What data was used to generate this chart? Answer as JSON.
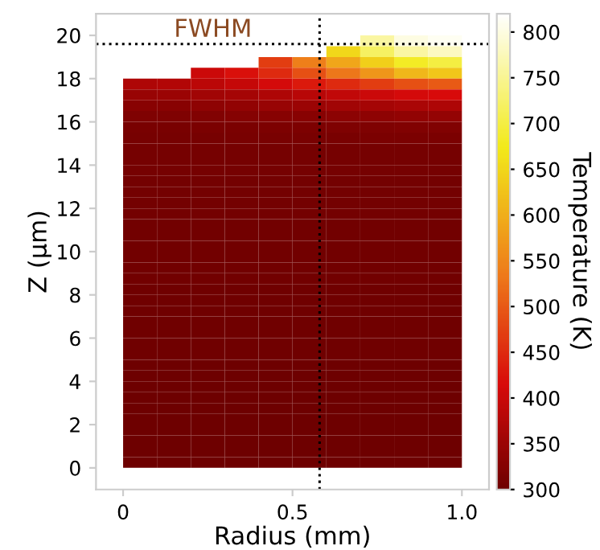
{
  "chart_data": {
    "type": "heatmap",
    "xlabel": "Radius (mm)",
    "ylabel": "Z (µm)",
    "clabel": "Temperature (K)",
    "x": [
      0.05,
      0.15,
      0.25,
      0.35,
      0.45,
      0.55,
      0.65,
      0.75,
      0.85,
      0.95
    ],
    "y": [
      19.75,
      19.25,
      18.75,
      18.25,
      17.75,
      17.25,
      16.75,
      16.25,
      15.75,
      15.25,
      14.75,
      14.25,
      13.75,
      13.25,
      12.75,
      12.25,
      11.75,
      11.25,
      10.75,
      10.25,
      9.75,
      9.25,
      8.75,
      8.25,
      7.75,
      7.25,
      6.75,
      6.25,
      5.75,
      5.25,
      4.75,
      4.25,
      3.75,
      3.25,
      2.75,
      2.25,
      1.75,
      1.25,
      0.75,
      0.25
    ],
    "cells": [
      [
        null,
        null,
        null,
        null,
        null,
        null,
        null,
        760,
        800,
        810
      ],
      [
        null,
        null,
        null,
        null,
        null,
        null,
        650,
        720,
        760,
        780
      ],
      [
        null,
        null,
        null,
        null,
        470,
        540,
        590,
        640,
        680,
        700
      ],
      [
        null,
        null,
        400,
        420,
        450,
        490,
        530,
        570,
        610,
        630
      ],
      [
        370,
        375,
        385,
        395,
        410,
        430,
        450,
        470,
        490,
        500
      ],
      [
        345,
        350,
        355,
        360,
        370,
        380,
        390,
        400,
        410,
        415
      ],
      [
        330,
        330,
        335,
        340,
        345,
        350,
        355,
        360,
        365,
        370
      ],
      [
        320,
        320,
        322,
        325,
        328,
        330,
        333,
        336,
        340,
        342
      ],
      [
        314,
        314,
        315,
        316,
        317,
        318,
        319,
        320,
        321,
        322
      ],
      [
        312,
        312,
        312,
        313,
        313,
        314,
        314,
        315,
        315,
        316
      ],
      [
        310,
        310,
        310,
        310,
        310,
        310,
        310,
        310,
        310,
        310
      ],
      [
        309,
        309,
        309,
        309,
        309,
        309,
        309,
        309,
        309,
        309
      ],
      [
        309,
        309,
        309,
        309,
        309,
        309,
        309,
        309,
        309,
        309
      ],
      [
        308,
        308,
        308,
        308,
        308,
        308,
        308,
        308,
        308,
        308
      ],
      [
        308,
        308,
        308,
        308,
        308,
        308,
        308,
        308,
        308,
        308
      ],
      [
        307,
        307,
        307,
        307,
        307,
        307,
        307,
        307,
        307,
        307
      ],
      [
        307,
        307,
        307,
        307,
        307,
        307,
        307,
        307,
        307,
        307
      ],
      [
        306,
        306,
        306,
        306,
        306,
        306,
        306,
        306,
        306,
        306
      ],
      [
        306,
        306,
        306,
        306,
        306,
        306,
        306,
        306,
        306,
        306
      ],
      [
        306,
        306,
        306,
        306,
        306,
        306,
        306,
        306,
        306,
        306
      ],
      [
        305,
        305,
        305,
        305,
        305,
        305,
        305,
        305,
        305,
        305
      ],
      [
        305,
        305,
        305,
        305,
        305,
        305,
        305,
        305,
        305,
        305
      ],
      [
        305,
        305,
        305,
        305,
        305,
        305,
        305,
        305,
        305,
        305
      ],
      [
        304,
        304,
        304,
        304,
        304,
        304,
        304,
        304,
        304,
        304
      ],
      [
        304,
        304,
        304,
        304,
        304,
        304,
        304,
        304,
        304,
        304
      ],
      [
        304,
        304,
        304,
        304,
        304,
        304,
        304,
        304,
        304,
        304
      ],
      [
        303,
        303,
        303,
        303,
        303,
        303,
        303,
        303,
        303,
        303
      ],
      [
        303,
        303,
        303,
        303,
        303,
        303,
        303,
        303,
        303,
        303
      ],
      [
        303,
        303,
        303,
        303,
        303,
        303,
        303,
        303,
        303,
        303
      ],
      [
        303,
        303,
        303,
        303,
        303,
        303,
        303,
        303,
        303,
        303
      ],
      [
        302,
        302,
        302,
        302,
        302,
        302,
        302,
        302,
        302,
        302
      ],
      [
        302,
        302,
        302,
        302,
        302,
        302,
        302,
        302,
        302,
        302
      ],
      [
        302,
        302,
        302,
        302,
        302,
        302,
        302,
        302,
        302,
        302
      ],
      [
        302,
        302,
        302,
        302,
        302,
        302,
        302,
        302,
        302,
        302
      ],
      [
        301,
        301,
        301,
        301,
        301,
        301,
        301,
        301,
        301,
        301
      ],
      [
        301,
        301,
        301,
        301,
        301,
        301,
        301,
        301,
        301,
        301
      ],
      [
        301,
        301,
        301,
        301,
        301,
        301,
        301,
        301,
        301,
        301
      ],
      [
        301,
        301,
        301,
        301,
        301,
        301,
        301,
        301,
        301,
        301
      ],
      [
        300,
        300,
        300,
        300,
        300,
        300,
        300,
        300,
        300,
        300
      ],
      [
        300,
        300,
        300,
        300,
        300,
        300,
        300,
        300,
        300,
        300
      ]
    ],
    "clim": [
      300,
      820
    ],
    "cticks": [
      300,
      350,
      400,
      450,
      500,
      550,
      600,
      650,
      700,
      750,
      800
    ],
    "xlim": [
      -0.08,
      1.08
    ],
    "xticks": [
      0,
      0.5,
      {
        "value": 1,
        "label": "1.0"
      }
    ],
    "ylim": [
      -1,
      21
    ],
    "yticks": [
      0,
      2,
      4,
      6,
      8,
      10,
      12,
      14,
      16,
      18,
      20
    ],
    "ref_lines": [
      {
        "axis": "y",
        "value": 19.6,
        "label": "FWHM",
        "color": "#000000",
        "line_style": "dotted"
      },
      {
        "axis": "x",
        "value": 0.58,
        "color": "#000000",
        "line_style": "dotted"
      }
    ],
    "grid": false
  }
}
